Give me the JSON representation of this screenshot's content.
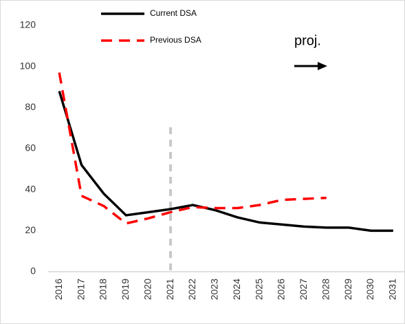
{
  "chart_data": {
    "type": "line",
    "categories": [
      "2016",
      "2017",
      "2018",
      "2019",
      "2020",
      "2021",
      "2022",
      "2023",
      "2024",
      "2025",
      "2026",
      "2027",
      "2028",
      "2029",
      "2030",
      "2031"
    ],
    "series": [
      {
        "name": "Current DSA",
        "color": "#000000",
        "dash": false,
        "values": [
          88,
          52,
          38,
          27.5,
          29,
          30.5,
          32.5,
          30,
          26.5,
          24,
          23,
          22,
          21.5,
          21.5,
          20,
          20
        ]
      },
      {
        "name": "Previous DSA",
        "color": "#ff0000",
        "dash": true,
        "values": [
          97,
          37,
          32,
          23.5,
          26,
          29,
          31.5,
          31,
          31,
          32.5,
          35,
          35.5,
          36,
          null,
          null,
          null
        ]
      }
    ],
    "ylim": [
      0,
      120
    ],
    "yticks": [
      0,
      20,
      40,
      60,
      80,
      100,
      120
    ],
    "annotation": "proj.",
    "divider_at": "2021",
    "grid": false
  }
}
